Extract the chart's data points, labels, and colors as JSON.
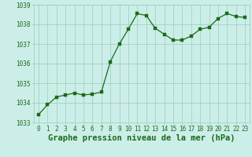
{
  "x": [
    0,
    1,
    2,
    3,
    4,
    5,
    6,
    7,
    8,
    9,
    10,
    11,
    12,
    13,
    14,
    15,
    16,
    17,
    18,
    19,
    20,
    21,
    22,
    23
  ],
  "y": [
    1033.4,
    1033.9,
    1034.3,
    1034.4,
    1034.5,
    1034.4,
    1034.45,
    1034.55,
    1036.1,
    1037.0,
    1037.75,
    1038.55,
    1038.45,
    1037.8,
    1037.5,
    1037.2,
    1037.2,
    1037.4,
    1037.75,
    1037.85,
    1038.3,
    1038.55,
    1038.4,
    1038.35
  ],
  "line_color": "#1a6b1a",
  "marker_color": "#1a6b1a",
  "bg_color": "#cceee8",
  "grid_color": "#99ccbb",
  "xlabel": "Graphe pression niveau de la mer (hPa)",
  "xlabel_color": "#1a6b1a",
  "ylim": [
    1033,
    1039
  ],
  "yticks": [
    1033,
    1034,
    1035,
    1036,
    1037,
    1038,
    1039
  ],
  "xticks": [
    0,
    1,
    2,
    3,
    4,
    5,
    6,
    7,
    8,
    9,
    10,
    11,
    12,
    13,
    14,
    15,
    16,
    17,
    18,
    19,
    20,
    21,
    22,
    23
  ],
  "tick_label_color": "#1a6b1a",
  "tick_label_size": 5.5,
  "xlabel_fontsize": 7.5,
  "xlabel_bold": true
}
